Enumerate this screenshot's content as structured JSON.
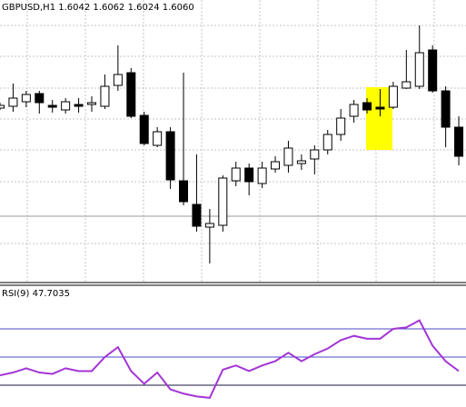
{
  "chart_data": [
    {
      "type": "candlestick",
      "title": "GBPUSD,H1  1.6042 1.6062 1.6024 1.6060",
      "ylim": [
        1.5789,
        1.61
      ],
      "bull_color": "#ffffff",
      "bear_color": "#000000",
      "outline_color": "#000000",
      "open": [
        1.5981,
        1.5983,
        1.5988,
        1.5997,
        1.5984,
        1.5979,
        1.5985,
        1.5985,
        1.5983,
        1.6006,
        1.602,
        1.5973,
        1.594,
        1.5955,
        1.5901,
        1.5875,
        1.585,
        1.5852,
        1.5901,
        1.5915,
        1.5898,
        1.5914,
        1.5918,
        1.592,
        1.5925,
        1.5935,
        1.5952,
        1.5972,
        1.5987,
        1.5982,
        1.5982,
        1.6003,
        1.6005,
        1.6045,
        1.6,
        1.596
      ],
      "high": [
        1.5987,
        1.6008,
        1.6,
        1.6,
        1.599,
        1.5992,
        1.5992,
        1.5994,
        1.6018,
        1.605,
        1.6025,
        1.5977,
        1.596,
        1.596,
        1.602,
        1.593,
        1.587,
        1.5907,
        1.5922,
        1.592,
        1.5922,
        1.5928,
        1.5945,
        1.593,
        1.594,
        1.5957,
        1.598,
        1.599,
        1.5992,
        1.6002,
        1.601,
        1.6045,
        1.6072,
        1.605,
        1.6005,
        1.5972
      ],
      "low": [
        1.5979,
        1.5977,
        1.5982,
        1.5975,
        1.5976,
        1.5975,
        1.5976,
        1.5977,
        1.598,
        1.6,
        1.597,
        1.594,
        1.5938,
        1.5892,
        1.5874,
        1.5845,
        1.581,
        1.5845,
        1.5895,
        1.5885,
        1.5893,
        1.591,
        1.591,
        1.5913,
        1.5908,
        1.593,
        1.5945,
        1.5965,
        1.5975,
        1.5972,
        1.598,
        1.6002,
        1.6002,
        1.5998,
        1.5938,
        1.5918
      ],
      "close": [
        1.5984,
        1.5992,
        1.5996,
        1.5987,
        1.5982,
        1.5988,
        1.5983,
        1.5987,
        1.6005,
        1.6018,
        1.5972,
        1.5942,
        1.5955,
        1.5902,
        1.5878,
        1.5851,
        1.5854,
        1.5904,
        1.5915,
        1.59,
        1.5915,
        1.5922,
        1.5937,
        1.5923,
        1.5935,
        1.5952,
        1.597,
        1.5985,
        1.5979,
        1.598,
        1.6005,
        1.601,
        1.6042,
        1.6,
        1.596,
        1.5928
      ]
    },
    {
      "type": "line",
      "title": "RSI(9) 47.7035",
      "ylim": [
        14.5,
        100.3
      ],
      "color": "#a335d6",
      "levels": [
        70,
        50,
        30
      ],
      "level_colors": [
        "#4b4bc8",
        "#4b4bc8",
        "#1a1a40"
      ],
      "values": [
        37,
        39,
        42,
        39,
        38,
        42,
        40,
        40,
        50,
        57,
        40,
        31,
        39,
        27,
        24,
        22,
        21,
        41,
        44,
        40,
        44,
        47,
        53,
        47,
        52,
        56,
        62,
        65,
        63,
        63,
        70,
        71,
        76,
        58,
        47,
        40
      ]
    }
  ]
}
